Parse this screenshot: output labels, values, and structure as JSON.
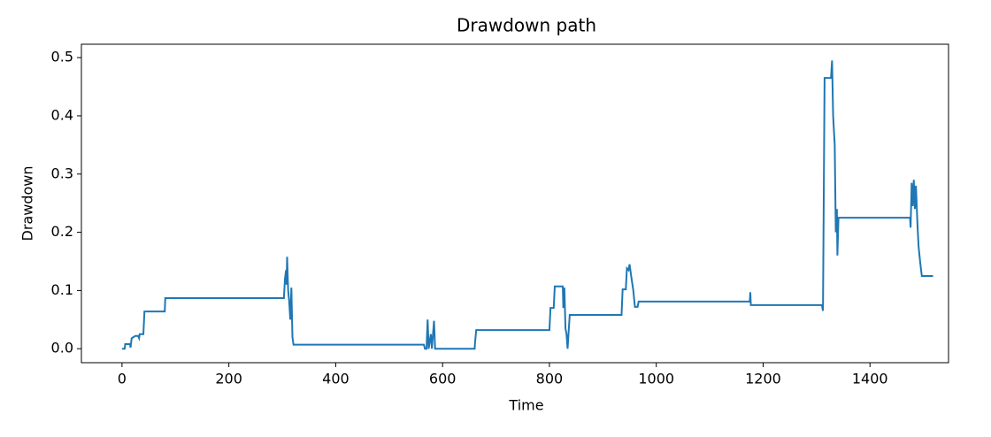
{
  "chart_data": {
    "type": "line",
    "title": "Drawdown path",
    "x_label": "Time",
    "y_label": "Drawdown",
    "x": [
      0,
      5,
      6,
      15,
      16,
      18,
      25,
      30,
      32,
      33,
      40,
      42,
      80,
      81,
      303,
      305,
      307,
      308,
      309,
      311,
      313,
      315,
      317,
      319,
      321,
      565,
      567,
      570,
      572,
      574,
      578,
      580,
      584,
      586,
      660,
      661,
      663,
      800,
      802,
      808,
      810,
      825,
      826,
      828,
      830,
      832,
      834,
      836,
      838,
      935,
      937,
      943,
      945,
      948,
      950,
      953,
      957,
      960,
      965,
      967,
      1175,
      1176,
      1177,
      1310,
      1312,
      1315,
      1327,
      1329,
      1331,
      1334,
      1336,
      1338,
      1339,
      1341,
      1475,
      1476,
      1478,
      1480,
      1482,
      1484,
      1486,
      1489,
      1491,
      1494,
      1497,
      1518
    ],
    "series": [
      {
        "name": "Drawdown",
        "color": "#1f77b4",
        "values": [
          0,
          0,
          0.008,
          0.008,
          0.002,
          0.018,
          0.022,
          0.022,
          0.018,
          0.025,
          0.025,
          0.064,
          0.064,
          0.087,
          0.087,
          0.12,
          0.135,
          0.11,
          0.158,
          0.1,
          0.08,
          0.05,
          0.105,
          0.02,
          0.007,
          0.007,
          0,
          0,
          0.05,
          0,
          0.025,
          0,
          0.048,
          0,
          0,
          0.013,
          0.032,
          0.032,
          0.07,
          0.07,
          0.107,
          0.107,
          0.07,
          0.105,
          0.035,
          0.025,
          0,
          0.03,
          0.058,
          0.058,
          0.102,
          0.102,
          0.138,
          0.135,
          0.145,
          0.125,
          0.1,
          0.072,
          0.072,
          0.081,
          0.081,
          0.097,
          0.075,
          0.075,
          0.065,
          0.465,
          0.465,
          0.495,
          0.4,
          0.35,
          0.2,
          0.24,
          0.16,
          0.225,
          0.225,
          0.208,
          0.285,
          0.245,
          0.29,
          0.24,
          0.28,
          0.21,
          0.175,
          0.148,
          0.125,
          0.125
        ]
      }
    ],
    "xlim": [
      -76,
      1547
    ],
    "ylim": [
      -0.024,
      0.523
    ],
    "xticks": [
      0,
      200,
      400,
      600,
      800,
      1000,
      1200,
      1400
    ],
    "yticks": [
      {
        "value": 0,
        "label": "0.0"
      },
      {
        "value": 0.1,
        "label": "0.1"
      },
      {
        "value": 0.2,
        "label": "0.2"
      },
      {
        "value": 0.3,
        "label": "0.3"
      },
      {
        "value": 0.4,
        "label": "0.4"
      },
      {
        "value": 0.5,
        "label": "0.5"
      }
    ],
    "grid": false
  }
}
